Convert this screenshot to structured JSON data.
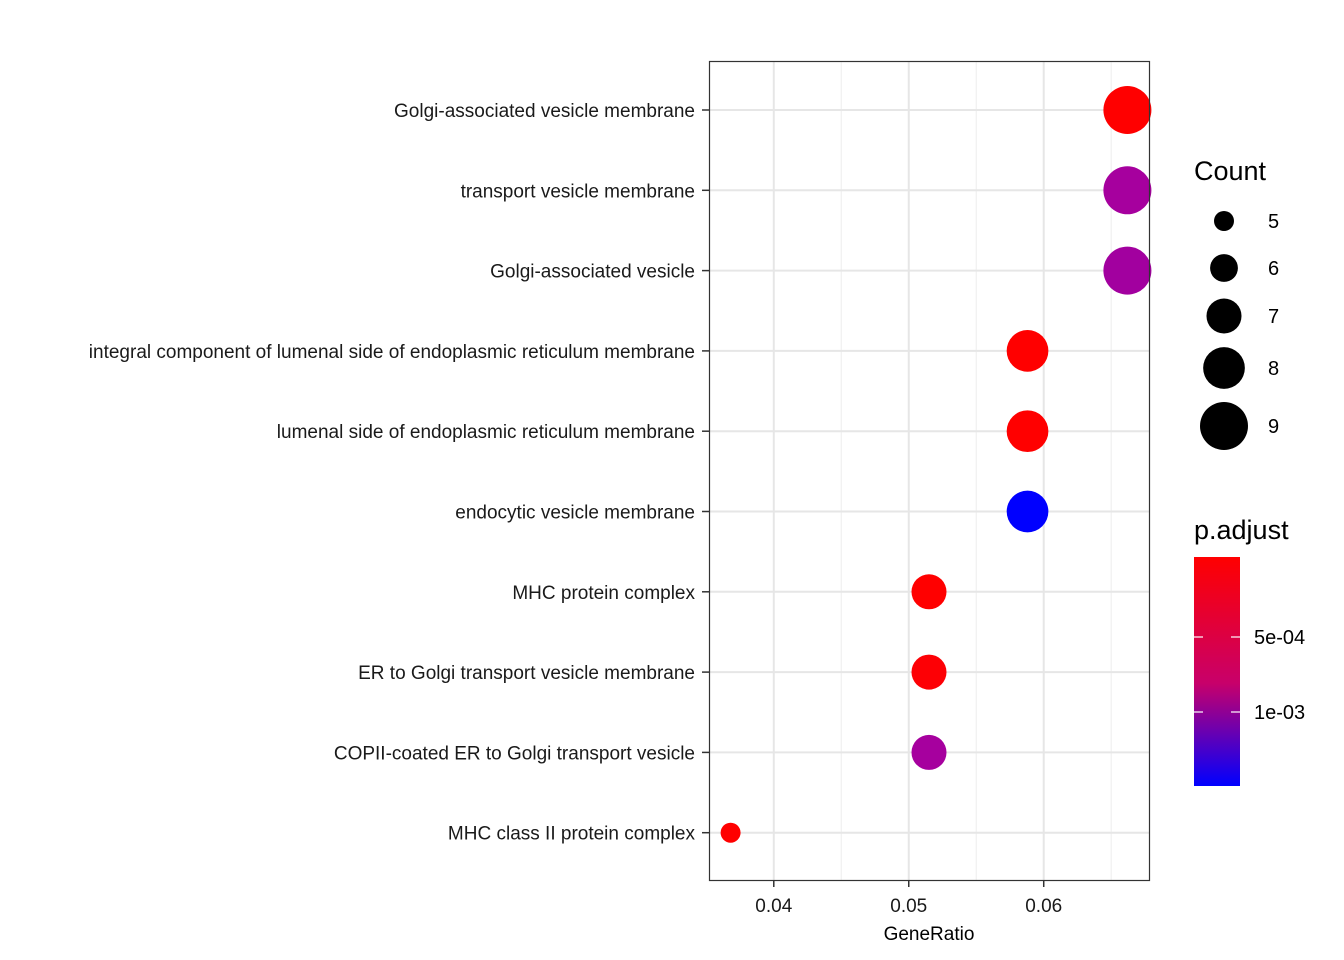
{
  "chart_data": {
    "type": "scatter",
    "xlabel": "GeneRatio",
    "xlim": [
      0.0352,
      0.0678
    ],
    "x_ticks": [
      {
        "value": 0.04,
        "label": "0.04"
      },
      {
        "value": 0.05,
        "label": "0.05"
      },
      {
        "value": 0.06,
        "label": "0.06"
      }
    ],
    "grid": true,
    "categories": [
      "Golgi-associated vesicle membrane",
      "transport vesicle membrane",
      "Golgi-associated vesicle",
      "integral component of lumenal side of endoplasmic reticulum membrane",
      "lumenal side of endoplasmic reticulum membrane",
      "endocytic vesicle membrane",
      "MHC protein complex",
      "ER to Golgi transport vesicle membrane",
      "COPII-coated ER to Golgi transport vesicle",
      "MHC class II protein complex"
    ],
    "points": [
      {
        "term": "Golgi-associated vesicle membrane",
        "gene_ratio": 0.0662,
        "count": 9,
        "color": "#ff0000"
      },
      {
        "term": "transport vesicle membrane",
        "gene_ratio": 0.0662,
        "count": 9,
        "color": "#a6009e"
      },
      {
        "term": "Golgi-associated vesicle",
        "gene_ratio": 0.0662,
        "count": 9,
        "color": "#a2009f"
      },
      {
        "term": "integral component of lumenal side of endoplasmic reticulum membrane",
        "gene_ratio": 0.0588,
        "count": 8,
        "color": "#ff0000"
      },
      {
        "term": "lumenal side of endoplasmic reticulum membrane",
        "gene_ratio": 0.0588,
        "count": 8,
        "color": "#ff0000"
      },
      {
        "term": "endocytic vesicle membrane",
        "gene_ratio": 0.0588,
        "count": 8,
        "color": "#0000ff"
      },
      {
        "term": "MHC protein complex",
        "gene_ratio": 0.0515,
        "count": 7,
        "color": "#ff0000"
      },
      {
        "term": "ER to Golgi transport vesicle membrane",
        "gene_ratio": 0.0515,
        "count": 7,
        "color": "#fd0005"
      },
      {
        "term": "COPII-coated ER to Golgi transport vesicle",
        "gene_ratio": 0.0515,
        "count": 7,
        "color": "#a6009e"
      },
      {
        "term": "MHC class II protein complex",
        "gene_ratio": 0.0368,
        "count": 5,
        "color": "#ff0000"
      }
    ],
    "legend_count": {
      "title": "Count",
      "items": [
        {
          "label": "5",
          "count": 5
        },
        {
          "label": "6",
          "count": 6
        },
        {
          "label": "7",
          "count": 7
        },
        {
          "label": "8",
          "count": 8
        },
        {
          "label": "9",
          "count": 9
        }
      ]
    },
    "legend_color": {
      "title": "p.adjust",
      "low_color": "#0000ff",
      "high_color": "#ff0000",
      "ticks": [
        "5e-04",
        "1e-03"
      ]
    }
  }
}
